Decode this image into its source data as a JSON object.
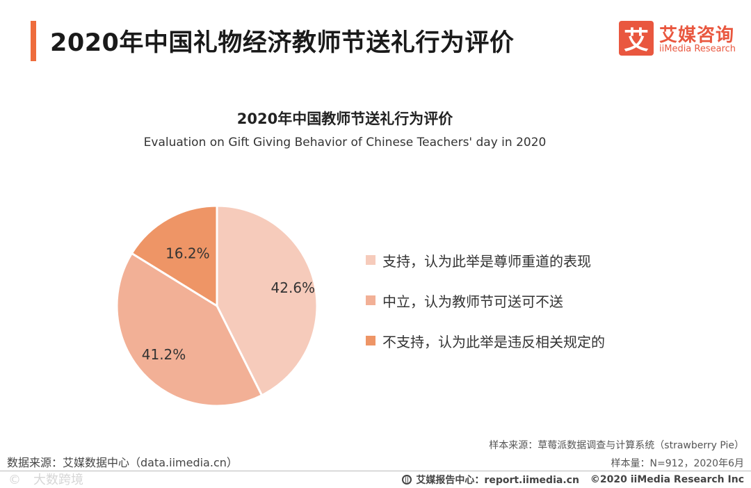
{
  "header": {
    "title": "2020年中国礼物经济教师节送礼行为评价",
    "logo_mark": "艾",
    "logo_cn": "艾媒咨询",
    "logo_en": "iiMedia Research"
  },
  "chart_data": {
    "type": "pie",
    "title": "2020年中国教师节送礼行为评价",
    "subtitle": "Evaluation on Gift Giving Behavior of Chinese Teachers' day in 2020",
    "categories": [
      "支持，认为此举是尊师重道的表现",
      "中立，认为教师节可送可不送",
      "不支持，认为此举是违反相关规定的"
    ],
    "values": [
      42.6,
      41.2,
      16.2
    ],
    "labels": [
      "42.6%",
      "41.2%",
      "16.2%"
    ],
    "colors": [
      "#f6cbbb",
      "#f2b096",
      "#ee9566"
    ],
    "legend_position": "right"
  },
  "footer": {
    "data_source": "数据来源：艾媒数据中心（data.iimedia.cn）",
    "sample_source": "样本来源：草莓派数据调查与计算系统（strawberry Pie）",
    "sample_size": "样本量：N=912，2020年6月",
    "report_center": "艾媒报告中心：report.iimedia.cn",
    "copyright": "©2020  iiMedia Research  Inc",
    "watermark": "©　大数跨境"
  },
  "colors": {
    "accent": "#ee6c3c",
    "brand": "#e9573f"
  }
}
